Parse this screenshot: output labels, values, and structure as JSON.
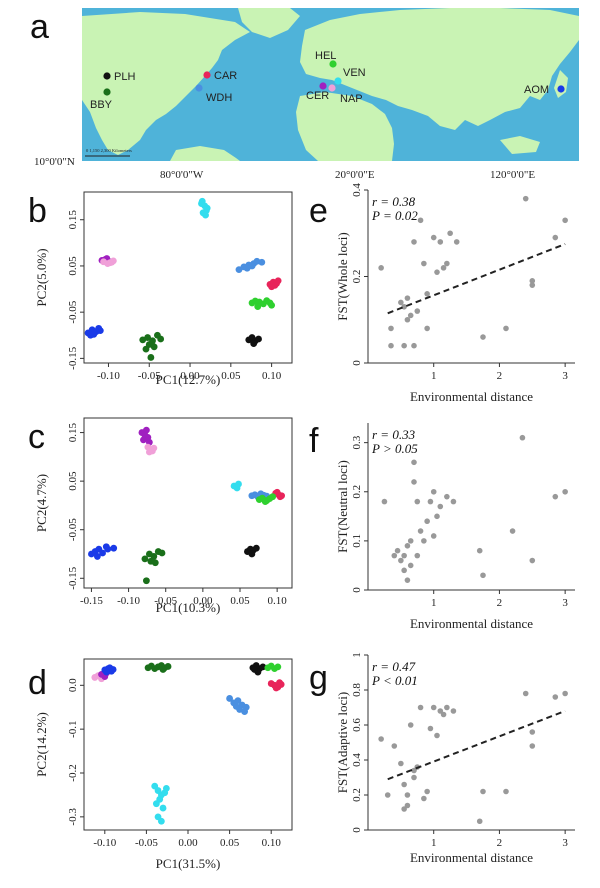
{
  "colors": {
    "PLH": "#111111",
    "BBY": "#1a6f1a",
    "CAR": "#e8245a",
    "WDH": "#4a8fe0",
    "HEL": "#2fd02f",
    "VEN": "#33ddee",
    "CER": "#a020c0",
    "NAP": "#f0a0d8",
    "AOM": "#1a3ae8",
    "scatter_point": "#999999",
    "map_sea": "#4fb3d9",
    "map_land": "#c9f3b4"
  },
  "map": {
    "panel": "a",
    "lat_label": "10°0'0\"N",
    "lon_labels": [
      "80°0'0\"W",
      "20°0'0\"E",
      "120°0'0\"E"
    ],
    "scalebar_text": "0   1,150  2,300 Kilometers",
    "sites": [
      {
        "code": "PLH",
        "color": "#111111"
      },
      {
        "code": "BBY",
        "color": "#1a6f1a"
      },
      {
        "code": "CAR",
        "color": "#e8245a"
      },
      {
        "code": "WDH",
        "color": "#4a8fe0"
      },
      {
        "code": "HEL",
        "color": "#2fd02f"
      },
      {
        "code": "VEN",
        "color": "#33ddee"
      },
      {
        "code": "CER",
        "color": "#a020c0"
      },
      {
        "code": "NAP",
        "color": "#f0a0d8"
      },
      {
        "code": "AOM",
        "color": "#1a3ae8"
      }
    ]
  },
  "chart_data": [
    {
      "panel": "b",
      "type": "scatter",
      "xlabel": "PC1(12.7%)",
      "ylabel": "PC2(5.0%)",
      "xlim": [
        -0.13,
        0.125
      ],
      "ylim": [
        -0.16,
        0.21
      ],
      "xticks": [
        -0.1,
        -0.05,
        0.0,
        0.05,
        0.1
      ],
      "xtick_labels": [
        "-0.10",
        "-0.05",
        "0.00",
        "0.05",
        "0.10"
      ],
      "yticks": [
        -0.15,
        -0.05,
        0.05,
        0.15
      ],
      "ytick_labels": [
        "-0.15",
        "-0.05",
        "0.05",
        "0.15"
      ],
      "groups": [
        {
          "site": "VEN",
          "x": [
            0.015,
            0.018,
            0.02,
            0.016,
            0.019,
            0.021,
            0.014
          ],
          "y": [
            0.19,
            0.18,
            0.17,
            0.165,
            0.16,
            0.175,
            0.185
          ]
        },
        {
          "site": "CER",
          "x": [
            -0.108,
            -0.104,
            -0.1,
            -0.102
          ],
          "y": [
            0.062,
            0.064,
            0.06,
            0.066
          ]
        },
        {
          "site": "NAP",
          "x": [
            -0.106,
            -0.098,
            -0.094,
            -0.101,
            -0.096
          ],
          "y": [
            0.059,
            0.057,
            0.061,
            0.055,
            0.058
          ]
        },
        {
          "site": "AOM",
          "x": [
            -0.125,
            -0.12,
            -0.115,
            -0.112,
            -0.118,
            -0.122,
            -0.11
          ],
          "y": [
            -0.095,
            -0.088,
            -0.092,
            -0.085,
            -0.098,
            -0.1,
            -0.09
          ]
        },
        {
          "site": "BBY",
          "x": [
            -0.058,
            -0.052,
            -0.046,
            -0.04,
            -0.036,
            -0.05,
            -0.044,
            -0.054,
            -0.048
          ],
          "y": [
            -0.11,
            -0.105,
            -0.112,
            -0.1,
            -0.108,
            -0.12,
            -0.125,
            -0.13,
            -0.148
          ]
        },
        {
          "site": "WDH",
          "x": [
            0.06,
            0.066,
            0.072,
            0.078,
            0.082,
            0.088,
            0.07,
            0.076
          ],
          "y": [
            0.042,
            0.048,
            0.052,
            0.055,
            0.06,
            0.058,
            0.045,
            0.05
          ]
        },
        {
          "site": "CAR",
          "x": [
            0.098,
            0.102,
            0.106,
            0.108,
            0.104,
            0.1
          ],
          "y": [
            0.01,
            0.015,
            0.012,
            0.018,
            0.008,
            0.005
          ]
        },
        {
          "site": "HEL",
          "x": [
            0.076,
            0.08,
            0.085,
            0.09,
            0.094,
            0.098,
            0.1,
            0.083
          ],
          "y": [
            -0.03,
            -0.026,
            -0.028,
            -0.032,
            -0.025,
            -0.03,
            -0.035,
            -0.038
          ]
        },
        {
          "site": "PLH",
          "x": [
            0.072,
            0.076,
            0.08,
            0.084,
            0.078
          ],
          "y": [
            -0.11,
            -0.105,
            -0.112,
            -0.108,
            -0.118
          ]
        }
      ]
    },
    {
      "panel": "c",
      "type": "scatter",
      "xlabel": "PC1(10.3%)",
      "ylabel": "PC2(4.7%)",
      "xlim": [
        -0.16,
        0.12
      ],
      "ylim": [
        -0.17,
        0.18
      ],
      "xticks": [
        -0.15,
        -0.1,
        -0.05,
        0.0,
        0.05,
        0.1
      ],
      "xtick_labels": [
        "-0.15",
        "-0.10",
        "-0.05",
        "0.00",
        "0.05",
        "0.10"
      ],
      "yticks": [
        -0.15,
        -0.05,
        0.05,
        0.15
      ],
      "ytick_labels": [
        "-0.15",
        "-0.05",
        "0.05",
        "0.15"
      ],
      "groups": [
        {
          "site": "CER",
          "x": [
            -0.082,
            -0.078,
            -0.074,
            -0.076,
            -0.08,
            -0.072
          ],
          "y": [
            0.15,
            0.145,
            0.14,
            0.155,
            0.135,
            0.13
          ]
        },
        {
          "site": "NAP",
          "x": [
            -0.074,
            -0.07,
            -0.066,
            -0.072,
            -0.068
          ],
          "y": [
            0.12,
            0.115,
            0.118,
            0.11,
            0.112
          ]
        },
        {
          "site": "AOM",
          "x": [
            -0.15,
            -0.145,
            -0.14,
            -0.135,
            -0.13,
            -0.142,
            -0.128,
            -0.12
          ],
          "y": [
            -0.1,
            -0.095,
            -0.09,
            -0.098,
            -0.085,
            -0.105,
            -0.09,
            -0.088
          ]
        },
        {
          "site": "BBY",
          "x": [
            -0.078,
            -0.072,
            -0.066,
            -0.06,
            -0.055,
            -0.07,
            -0.064,
            -0.076
          ],
          "y": [
            -0.11,
            -0.1,
            -0.105,
            -0.095,
            -0.098,
            -0.115,
            -0.118,
            -0.155
          ]
        },
        {
          "site": "VEN",
          "x": [
            0.042,
            0.046,
            0.048
          ],
          "y": [
            0.04,
            0.036,
            0.044
          ]
        },
        {
          "site": "WDH",
          "x": [
            0.066,
            0.07,
            0.074,
            0.078,
            0.082,
            0.086
          ],
          "y": [
            0.02,
            0.022,
            0.018,
            0.024,
            0.021,
            0.019
          ]
        },
        {
          "site": "CAR",
          "x": [
            0.098,
            0.102,
            0.106,
            0.104,
            0.1
          ],
          "y": [
            0.025,
            0.022,
            0.02,
            0.018,
            0.027
          ]
        },
        {
          "site": "HEL",
          "x": [
            0.076,
            0.08,
            0.086,
            0.09,
            0.094,
            0.084
          ],
          "y": [
            0.012,
            0.015,
            0.01,
            0.014,
            0.018,
            0.008
          ]
        },
        {
          "site": "PLH",
          "x": [
            0.06,
            0.064,
            0.068,
            0.072,
            0.066
          ],
          "y": [
            -0.095,
            -0.09,
            -0.092,
            -0.088,
            -0.1
          ]
        }
      ]
    },
    {
      "panel": "d",
      "type": "scatter",
      "xlabel": "PC1(31.5%)",
      "ylabel": "PC2(14.2%)",
      "xlim": [
        -0.125,
        0.125
      ],
      "ylim": [
        -0.33,
        0.06
      ],
      "xticks": [
        -0.1,
        -0.05,
        0.0,
        0.05,
        0.1
      ],
      "xtick_labels": [
        "-0.10",
        "-0.05",
        "0.00",
        "0.05",
        "0.10"
      ],
      "yticks": [
        0.0,
        -0.1,
        -0.2,
        -0.3
      ],
      "ytick_labels": [
        "0.0",
        "-0.1",
        "-0.2",
        "-0.3"
      ],
      "groups": [
        {
          "site": "NAP",
          "x": [
            -0.112,
            -0.108,
            -0.104
          ],
          "y": [
            0.018,
            0.022,
            0.015
          ]
        },
        {
          "site": "CER",
          "x": [
            -0.104,
            -0.1,
            -0.098
          ],
          "y": [
            0.025,
            0.02,
            0.028
          ]
        },
        {
          "site": "AOM",
          "x": [
            -0.1,
            -0.096,
            -0.092,
            -0.09,
            -0.094,
            -0.098
          ],
          "y": [
            0.035,
            0.038,
            0.032,
            0.036,
            0.04,
            0.03
          ]
        },
        {
          "site": "BBY",
          "x": [
            -0.048,
            -0.044,
            -0.04,
            -0.036,
            -0.032,
            -0.028,
            -0.024,
            -0.03
          ],
          "y": [
            0.04,
            0.044,
            0.038,
            0.042,
            0.045,
            0.04,
            0.043,
            0.036
          ]
        },
        {
          "site": "VEN",
          "x": [
            -0.04,
            -0.036,
            -0.032,
            -0.034,
            -0.028,
            -0.038,
            -0.03,
            -0.036,
            -0.032,
            -0.026
          ],
          "y": [
            -0.23,
            -0.24,
            -0.25,
            -0.26,
            -0.245,
            -0.27,
            -0.28,
            -0.3,
            -0.31,
            -0.235
          ]
        },
        {
          "site": "WDH",
          "x": [
            0.05,
            0.055,
            0.06,
            0.065,
            0.07,
            0.062,
            0.058,
            0.068
          ],
          "y": [
            -0.03,
            -0.04,
            -0.035,
            -0.045,
            -0.05,
            -0.055,
            -0.048,
            -0.06
          ]
        },
        {
          "site": "PLH",
          "x": [
            0.078,
            0.082,
            0.086,
            0.09,
            0.084,
            0.08
          ],
          "y": [
            0.04,
            0.045,
            0.038,
            0.042,
            0.03,
            0.036
          ]
        },
        {
          "site": "HEL",
          "x": [
            0.096,
            0.1,
            0.104,
            0.108
          ],
          "y": [
            0.04,
            0.044,
            0.038,
            0.042
          ]
        },
        {
          "site": "CAR",
          "x": [
            0.1,
            0.104,
            0.108,
            0.112,
            0.106,
            0.11
          ],
          "y": [
            0.004,
            0.0,
            -0.004,
            0.002,
            -0.006,
            0.006
          ]
        }
      ]
    },
    {
      "panel": "e",
      "type": "scatter",
      "ylabel": "FST(Whole loci)",
      "xlabel": "Environmental distance",
      "xlim": [
        0,
        3.15
      ],
      "ylim": [
        0,
        0.4
      ],
      "xticks": [
        1,
        2,
        3
      ],
      "xtick_labels": [
        "1",
        "2",
        "3"
      ],
      "yticks": [
        0,
        0.2,
        0.4
      ],
      "ytick_labels": [
        "0",
        "0.2",
        "0.4"
      ],
      "annotation": {
        "r": "r = 0.38",
        "p": "P = 0.02"
      },
      "trendline": {
        "x": [
          0.3,
          3.0
        ],
        "y": [
          0.115,
          0.275
        ]
      },
      "x": [
        0.2,
        0.35,
        0.35,
        0.5,
        0.55,
        0.55,
        0.6,
        0.6,
        0.65,
        0.7,
        0.7,
        0.75,
        0.8,
        0.85,
        0.9,
        1.0,
        1.05,
        1.1,
        1.15,
        1.2,
        1.25,
        1.35,
        0.9,
        1.75,
        2.1,
        2.4,
        2.5,
        2.5,
        2.85,
        3.0
      ],
      "y": [
        0.22,
        0.08,
        0.04,
        0.14,
        0.13,
        0.04,
        0.1,
        0.15,
        0.11,
        0.04,
        0.28,
        0.12,
        0.33,
        0.23,
        0.16,
        0.29,
        0.21,
        0.28,
        0.22,
        0.23,
        0.3,
        0.28,
        0.08,
        0.06,
        0.08,
        0.38,
        0.19,
        0.18,
        0.29,
        0.33
      ]
    },
    {
      "panel": "f",
      "type": "scatter",
      "ylabel": "FST(Neutral loci)",
      "xlabel": "Environmental distance",
      "xlim": [
        0,
        3.15
      ],
      "ylim": [
        0,
        0.34
      ],
      "xticks": [
        1,
        2,
        3
      ],
      "xtick_labels": [
        "1",
        "2",
        "3"
      ],
      "yticks": [
        0,
        0.1,
        0.2,
        0.3
      ],
      "ytick_labels": [
        "0",
        "0.1",
        "0.2",
        "0.3"
      ],
      "annotation": {
        "r": "r = 0.33",
        "p": "P > 0.05"
      },
      "x": [
        0.25,
        0.4,
        0.45,
        0.5,
        0.55,
        0.6,
        0.6,
        0.65,
        0.7,
        0.7,
        0.75,
        0.75,
        0.8,
        0.85,
        0.9,
        0.95,
        1.0,
        1.0,
        1.05,
        1.1,
        1.2,
        1.3,
        1.7,
        1.75,
        2.2,
        2.35,
        2.5,
        2.85,
        3.0,
        0.55,
        0.65
      ],
      "y": [
        0.18,
        0.07,
        0.08,
        0.06,
        0.07,
        0.09,
        0.02,
        0.1,
        0.22,
        0.26,
        0.18,
        0.07,
        0.12,
        0.1,
        0.14,
        0.18,
        0.2,
        0.11,
        0.15,
        0.17,
        0.19,
        0.18,
        0.08,
        0.03,
        0.12,
        0.31,
        0.06,
        0.19,
        0.2,
        0.04,
        0.05
      ]
    },
    {
      "panel": "g",
      "type": "scatter",
      "ylabel": "FST(Adaptive loci)",
      "xlabel": "Environmental distance",
      "xlim": [
        0,
        3.15
      ],
      "ylim": [
        0,
        1.0
      ],
      "xticks": [
        1,
        2,
        3
      ],
      "xtick_labels": [
        "1",
        "2",
        "3"
      ],
      "yticks": [
        0,
        0.2,
        0.4,
        0.6,
        0.8,
        1.0
      ],
      "ytick_labels": [
        "0",
        "0.2",
        "0.4",
        "0.6",
        "0.8",
        "1"
      ],
      "annotation": {
        "r": "r = 0.47",
        "p": "P < 0.01"
      },
      "trendline": {
        "x": [
          0.3,
          3.0
        ],
        "y": [
          0.29,
          0.68
        ]
      },
      "x": [
        0.2,
        0.3,
        0.4,
        0.5,
        0.55,
        0.6,
        0.6,
        0.65,
        0.7,
        0.7,
        0.75,
        0.8,
        0.85,
        0.9,
        0.95,
        1.0,
        1.05,
        1.1,
        1.15,
        1.2,
        1.3,
        1.7,
        1.75,
        2.1,
        2.4,
        2.5,
        2.5,
        2.85,
        3.0,
        0.55
      ],
      "y": [
        0.52,
        0.2,
        0.48,
        0.38,
        0.26,
        0.2,
        0.14,
        0.6,
        0.34,
        0.3,
        0.36,
        0.7,
        0.18,
        0.22,
        0.58,
        0.7,
        0.54,
        0.68,
        0.66,
        0.7,
        0.68,
        0.05,
        0.22,
        0.22,
        0.78,
        0.48,
        0.56,
        0.76,
        0.78,
        0.12
      ]
    }
  ]
}
